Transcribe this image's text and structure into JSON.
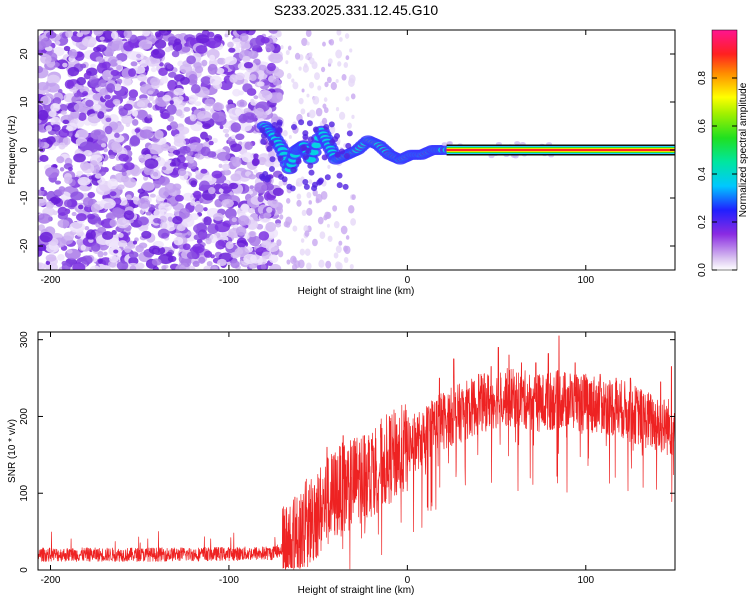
{
  "chart_data": [
    {
      "type": "heatmap",
      "title": "S233.2025.331.12.45.G10",
      "xlabel": "Height of straight line (km)",
      "ylabel": "Frequency (Hz)",
      "xlim": [
        -207,
        150
      ],
      "ylim": [
        -25,
        25
      ],
      "x_ticks": [
        -200,
        -100,
        0,
        100
      ],
      "x_tick_labels": [
        "-200",
        "-100",
        "0",
        "100"
      ],
      "y_ticks": [
        -20,
        -10,
        0,
        10,
        20
      ],
      "y_tick_labels": [
        "-20",
        "-10",
        "0",
        "10",
        "20"
      ],
      "colorbar": {
        "label": "Normalized spectral amplitude",
        "range": [
          0,
          1
        ],
        "ticks": [
          0.0,
          0.2,
          0.4,
          0.6,
          0.8
        ],
        "tick_labels": [
          "0.0",
          "0.2",
          "0.4",
          "0.6",
          "0.8"
        ]
      },
      "ridge_start_km": 22,
      "ridge_path": [
        [
          -80,
          5
        ],
        [
          -75,
          3
        ],
        [
          -70,
          0
        ],
        [
          -66,
          -4
        ],
        [
          -62,
          0
        ],
        [
          -58,
          1
        ],
        [
          -54,
          -2
        ],
        [
          -48,
          4
        ],
        [
          -44,
          1
        ],
        [
          -40,
          -2
        ],
        [
          -34,
          -1
        ],
        [
          -28,
          0
        ],
        [
          -22,
          2
        ],
        [
          -16,
          1
        ],
        [
          -10,
          -1
        ],
        [
          -4,
          -2
        ],
        [
          2,
          -1
        ],
        [
          8,
          -1
        ],
        [
          14,
          0
        ],
        [
          20,
          0
        ],
        [
          30,
          0
        ]
      ]
    },
    {
      "type": "line",
      "xlabel": "Height of straight line (km)",
      "ylabel": "SNR (10 * v/v)",
      "xlim": [
        -207,
        150
      ],
      "ylim": [
        0,
        310
      ],
      "x_ticks": [
        -200,
        -100,
        0,
        100
      ],
      "x_tick_labels": [
        "-200",
        "-100",
        "0",
        "100"
      ],
      "y_ticks": [
        0,
        100,
        200,
        300
      ],
      "y_tick_labels": [
        "0",
        "100",
        "200",
        "300"
      ],
      "series_color": "#ee2222",
      "envelope_x": [
        -207,
        -150,
        -100,
        -75,
        -70,
        -62,
        -50,
        -40,
        -30,
        -20,
        -10,
        0,
        10,
        15,
        25,
        35,
        45,
        55,
        65,
        75,
        85,
        95,
        110,
        120,
        130,
        140,
        150
      ],
      "envelope_y": [
        20,
        20,
        21,
        22,
        28,
        45,
        75,
        100,
        115,
        130,
        145,
        160,
        175,
        190,
        200,
        210,
        220,
        225,
        222,
        218,
        222,
        220,
        215,
        210,
        200,
        190,
        185
      ],
      "spikes": [
        [
          -63,
          95
        ],
        [
          -52,
          110
        ],
        [
          -45,
          160
        ],
        [
          -36,
          175
        ],
        [
          -24,
          175
        ],
        [
          -20,
          170
        ],
        [
          -8,
          165
        ],
        [
          7,
          175
        ],
        [
          13,
          210
        ],
        [
          18,
          250
        ],
        [
          26,
          275
        ],
        [
          34,
          235
        ],
        [
          40,
          255
        ],
        [
          47,
          265
        ],
        [
          51,
          290
        ],
        [
          57,
          280
        ],
        [
          64,
          270
        ],
        [
          72,
          270
        ],
        [
          79,
          282
        ],
        [
          85,
          305
        ],
        [
          94,
          270
        ],
        [
          108,
          255
        ],
        [
          117,
          250
        ],
        [
          125,
          250
        ],
        [
          142,
          245
        ],
        [
          148,
          265
        ]
      ]
    }
  ]
}
